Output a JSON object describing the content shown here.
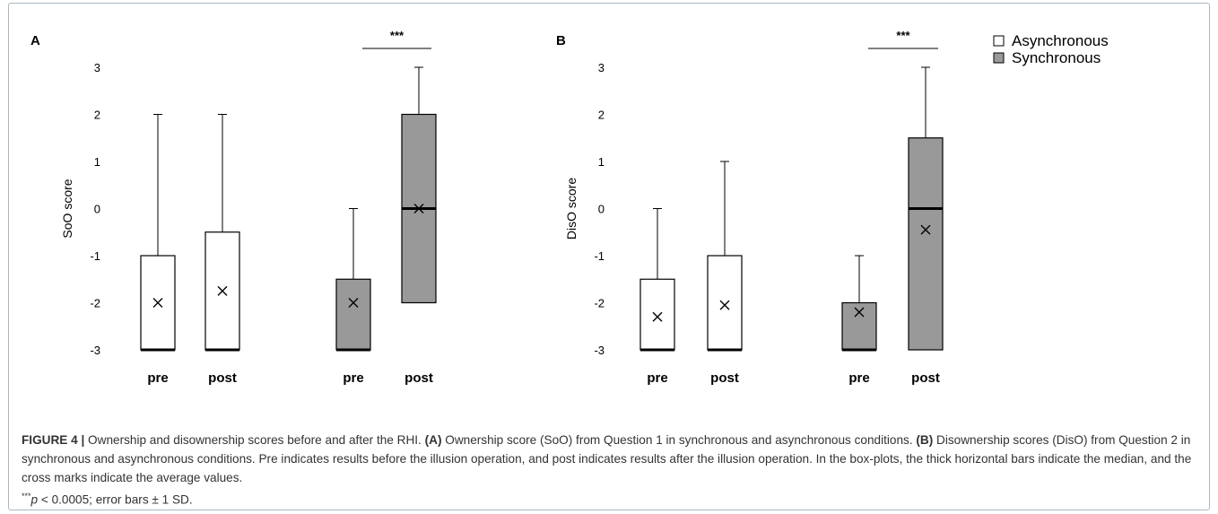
{
  "figure": {
    "panels": [
      {
        "letter": "A",
        "ylabel": "SoO score"
      },
      {
        "letter": "B",
        "ylabel": "DisO score"
      }
    ],
    "legend": {
      "items": [
        {
          "name": "Asynchronous",
          "color": "#ffffff"
        },
        {
          "name": "Synchronous",
          "color": "#999999"
        }
      ]
    },
    "caption": {
      "fig_label": "FIGURE 4 |",
      "text1": " Ownership and disownership scores before and after the RHI. ",
      "a_ref": "(A)",
      "text2": " Ownership score (SoO) from Question 1 in synchronous and asynchronous conditions. ",
      "b_ref": "(B)",
      "text3": " Disownership scores (DisO) from Question 2 in synchronous and asynchronous conditions. Pre indicates results before the illusion operation, and post indicates results after the illusion operation. In the box-plots, the thick horizontal bars indicate the median, and the cross marks indicate the average values.",
      "stars": "***",
      "p_italic": "p",
      "text4": " < 0.0005; error bars ± 1 SD."
    }
  },
  "chart_data": [
    {
      "type": "box",
      "panel": "A",
      "ylabel": "SoO score",
      "ylim": [
        -3,
        3
      ],
      "yticks": [
        "3",
        "2",
        "1",
        "0",
        "-1",
        "-2",
        "-3"
      ],
      "categories": [
        "pre",
        "post",
        "pre",
        "post"
      ],
      "series": [
        {
          "name": "Asynchronous",
          "color": "#ffffff",
          "boxes": [
            {
              "label": "pre",
              "min": -3,
              "q1": -3,
              "median": -3,
              "q3": -1,
              "max": 2,
              "mean": -2
            },
            {
              "label": "post",
              "min": -3,
              "q1": -3,
              "median": -3,
              "q3": -0.5,
              "max": 2,
              "mean": -1.75
            }
          ]
        },
        {
          "name": "Synchronous",
          "color": "#999999",
          "boxes": [
            {
              "label": "pre",
              "min": -3,
              "q1": -3,
              "median": -3,
              "q3": -1.5,
              "max": 0,
              "mean": -2
            },
            {
              "label": "post",
              "min": -3,
              "q1": -2,
              "median": 0,
              "q3": 2,
              "max": 3,
              "mean": 0
            }
          ]
        }
      ],
      "significance": "***"
    },
    {
      "type": "box",
      "panel": "B",
      "ylabel": "DisO score",
      "ylim": [
        -3,
        3
      ],
      "yticks": [
        "3",
        "2",
        "1",
        "0",
        "-1",
        "-2",
        "-3"
      ],
      "categories": [
        "pre",
        "post",
        "pre",
        "post"
      ],
      "series": [
        {
          "name": "Asynchronous",
          "color": "#ffffff",
          "boxes": [
            {
              "label": "pre",
              "min": -3,
              "q1": -3,
              "median": -3,
              "q3": -1.5,
              "max": 0,
              "mean": -2.3
            },
            {
              "label": "post",
              "min": -3,
              "q1": -3,
              "median": -3,
              "q3": -1,
              "max": 1,
              "mean": -2.05
            }
          ]
        },
        {
          "name": "Synchronous",
          "color": "#999999",
          "boxes": [
            {
              "label": "pre",
              "min": -3,
              "q1": -3,
              "median": -3,
              "q3": -2,
              "max": -1,
              "mean": -2.2
            },
            {
              "label": "post",
              "min": -3,
              "q1": -3,
              "median": 0,
              "q3": 1.5,
              "max": 3,
              "mean": -0.45
            }
          ]
        }
      ],
      "significance": "***"
    }
  ]
}
